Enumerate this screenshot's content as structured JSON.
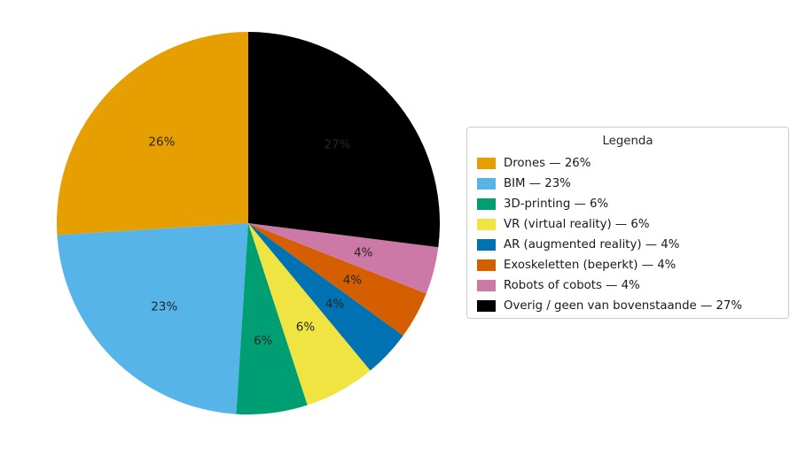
{
  "chart_data": {
    "type": "pie",
    "legend_title": "Legenda",
    "start_angle": 90,
    "direction": "counterclockwise",
    "background_color": "#ffffff",
    "legend_position": "right",
    "slices": [
      {
        "label": "Drones",
        "value": 26,
        "pct_label": "26%",
        "legend_label": "Drones — 26%",
        "color": "#E69F00"
      },
      {
        "label": "BIM",
        "value": 23,
        "pct_label": "23%",
        "legend_label": "BIM — 23%",
        "color": "#56B4E9"
      },
      {
        "label": "3D-printing",
        "value": 6,
        "pct_label": "6%",
        "legend_label": "3D-printing — 6%",
        "color": "#009E73"
      },
      {
        "label": "VR (virtual reality)",
        "value": 6,
        "pct_label": "6%",
        "legend_label": "VR (virtual reality) — 6%",
        "color": "#F0E442"
      },
      {
        "label": "AR (augmented reality)",
        "value": 4,
        "pct_label": "4%",
        "legend_label": "AR (augmented reality) — 4%",
        "color": "#0072B2"
      },
      {
        "label": "Exoskeletten (beperkt)",
        "value": 4,
        "pct_label": "4%",
        "legend_label": "Exoskeletten (beperkt) — 4%",
        "color": "#D55E00"
      },
      {
        "label": "Robots of cobots",
        "value": 4,
        "pct_label": "4%",
        "legend_label": "Robots of cobots — 4%",
        "color": "#CC79A7"
      },
      {
        "label": "Overig / geen van bovenstaande",
        "value": 27,
        "pct_label": "27%",
        "legend_label": "Overig / geen van bovenstaande — 27%",
        "color": "#000000"
      }
    ]
  }
}
